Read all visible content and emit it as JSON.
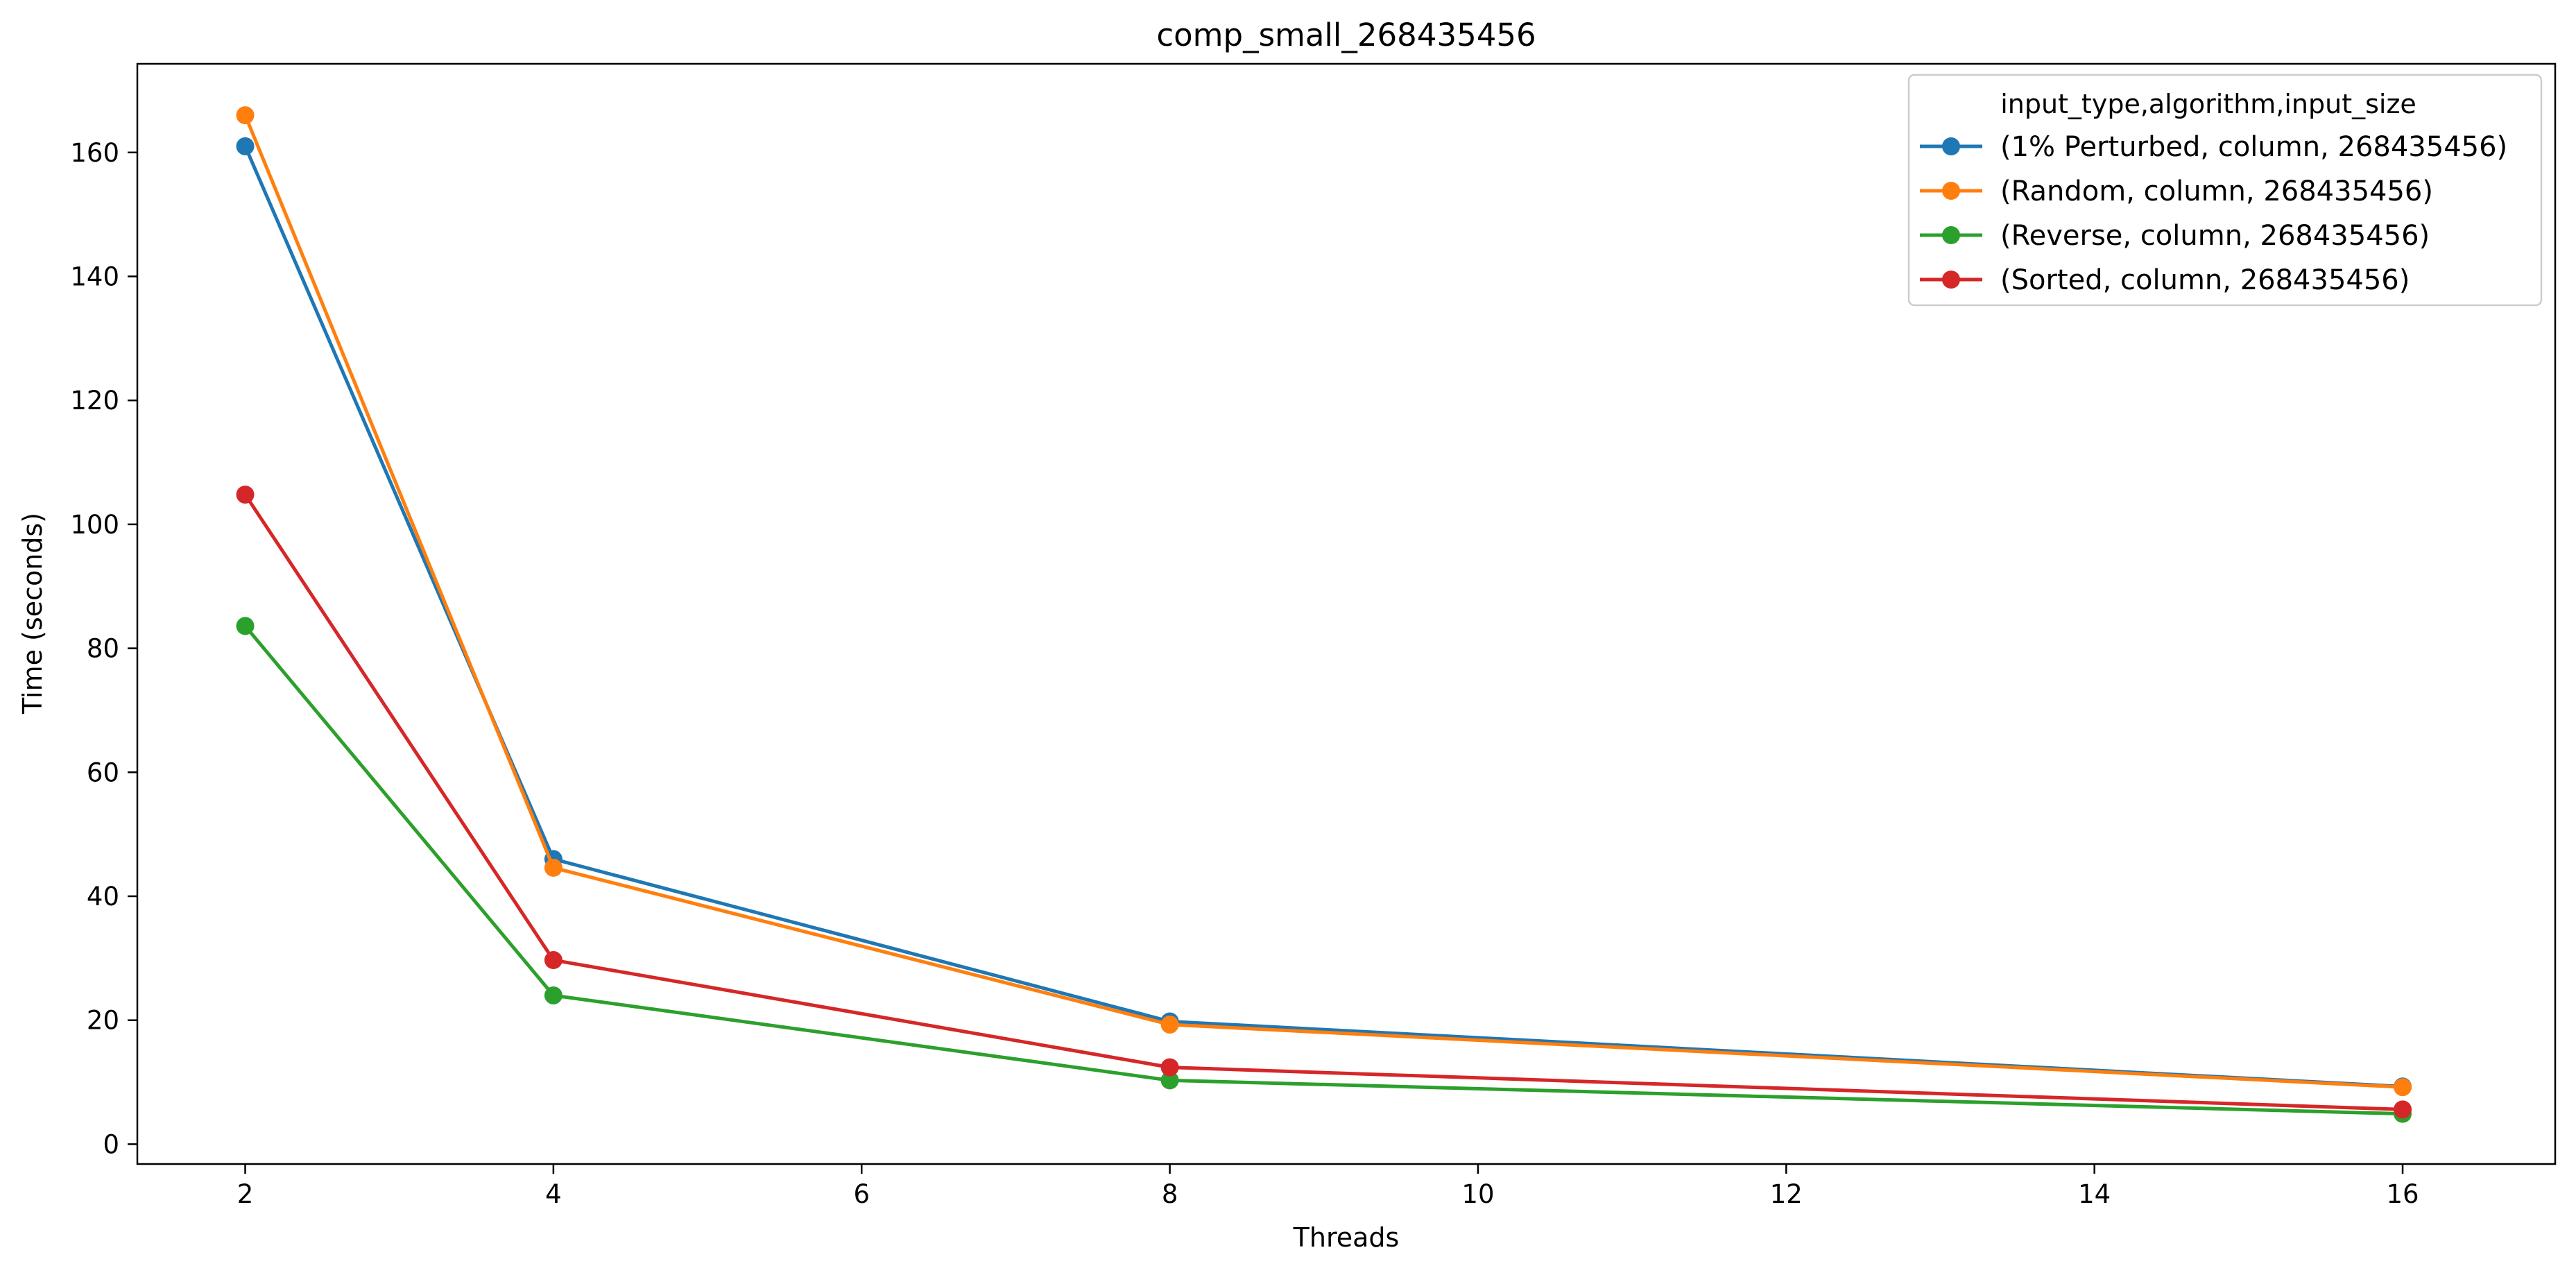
{
  "chart_data": {
    "type": "line",
    "title": "comp_small_268435456",
    "xlabel": "Threads",
    "ylabel": "Time (seconds)",
    "xlim": [
      1.3,
      16.99
    ],
    "ylim": [
      -3.2,
      174.3
    ],
    "xticks": [
      2,
      4,
      6,
      8,
      10,
      12,
      14,
      16
    ],
    "yticks": [
      0,
      20,
      40,
      60,
      80,
      100,
      120,
      140,
      160
    ],
    "grid": false,
    "legend_placement": "top-right",
    "legend_title": "input_type,algorithm,input_size",
    "x": [
      2,
      4,
      8,
      16
    ],
    "series": [
      {
        "name": "(1% Perturbed, column, 268435456)",
        "color": "#1f77b4",
        "values": [
          161.0,
          46.0,
          19.8,
          9.3
        ]
      },
      {
        "name": "(Random, column, 268435456)",
        "color": "#ff7f0e",
        "values": [
          166.0,
          44.6,
          19.3,
          9.2
        ]
      },
      {
        "name": "(Reverse, column, 268435456)",
        "color": "#2ca02c",
        "values": [
          83.6,
          24.0,
          10.3,
          4.9
        ]
      },
      {
        "name": "(Sorted, column, 268435456)",
        "color": "#d62728",
        "values": [
          104.8,
          29.7,
          12.4,
          5.6
        ]
      }
    ]
  }
}
